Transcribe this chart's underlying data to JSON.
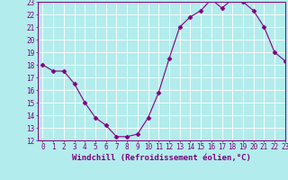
{
  "x": [
    0,
    1,
    2,
    3,
    4,
    5,
    6,
    7,
    8,
    9,
    10,
    11,
    12,
    13,
    14,
    15,
    16,
    17,
    18,
    19,
    20,
    21,
    22,
    23
  ],
  "y": [
    18,
    17.5,
    17.5,
    16.5,
    15,
    13.8,
    13.2,
    12.3,
    12.3,
    12.5,
    13.8,
    15.8,
    18.5,
    21,
    21.8,
    22.3,
    23.2,
    22.5,
    23.2,
    23,
    22.3,
    21,
    19,
    18.3
  ],
  "line_color": "#800080",
  "marker": "D",
  "marker_size": 2.5,
  "bg_color": "#b3ecec",
  "grid_color": "#d0f0f0",
  "xlabel": "Windchill (Refroidissement éolien,°C)",
  "ylim": [
    12,
    23
  ],
  "xlim": [
    -0.5,
    23
  ],
  "yticks": [
    12,
    13,
    14,
    15,
    16,
    17,
    18,
    19,
    20,
    21,
    22,
    23
  ],
  "xticks": [
    0,
    1,
    2,
    3,
    4,
    5,
    6,
    7,
    8,
    9,
    10,
    11,
    12,
    13,
    14,
    15,
    16,
    17,
    18,
    19,
    20,
    21,
    22,
    23
  ],
  "tick_label_fontsize": 5.5,
  "xlabel_fontsize": 6.5,
  "tick_color": "#800080",
  "label_color": "#800080",
  "spine_color": "#800080"
}
